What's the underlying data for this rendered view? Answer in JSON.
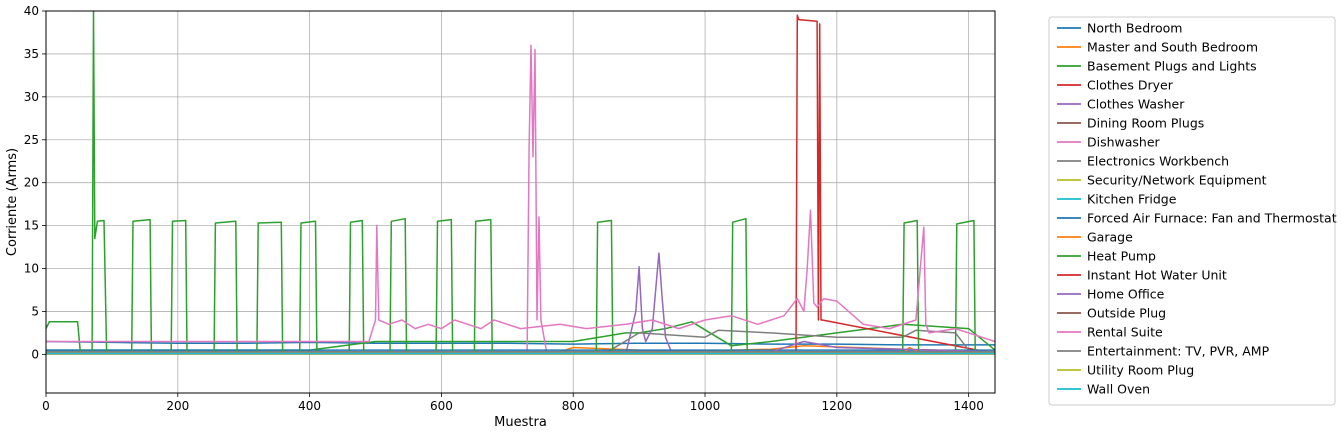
{
  "chart_data": {
    "type": "line",
    "title": "",
    "xlabel": "Muestra",
    "ylabel": "Corriente (Arms)",
    "xlim": [
      0,
      1440
    ],
    "ylim": [
      -4.5,
      40
    ],
    "xticks": [
      0,
      200,
      400,
      600,
      800,
      1000,
      1200,
      1400
    ],
    "yticks": [
      0,
      5,
      10,
      15,
      20,
      25,
      30,
      35,
      40
    ],
    "grid": true,
    "legend_position": "outside-right",
    "series": [
      {
        "name": "North Bedroom",
        "color": "#1f77b4",
        "x": [
          0,
          100,
          200,
          300,
          400,
          500,
          600,
          700,
          800,
          900,
          1000,
          1100,
          1200,
          1300,
          1440
        ],
        "y": [
          1.5,
          1.4,
          1.3,
          1.3,
          1.4,
          1.3,
          1.3,
          1.3,
          1.2,
          1.3,
          1.3,
          1.2,
          1.2,
          1.1,
          1.1
        ]
      },
      {
        "name": "Master and South Bedroom",
        "color": "#ff7f0e",
        "x": [
          0,
          780,
          800,
          900,
          1000,
          1100,
          1150,
          1300,
          1440
        ],
        "y": [
          0.3,
          0.3,
          0.8,
          0.5,
          0.4,
          0.6,
          1.0,
          0.6,
          0.3
        ]
      },
      {
        "name": "Basement Plugs and Lights",
        "color": "#2ca02c",
        "x": [
          0,
          200,
          400,
          500,
          600,
          700,
          800,
          880,
          900,
          940,
          980,
          1040,
          1100,
          1200,
          1300,
          1400,
          1440
        ],
        "y": [
          0.5,
          0.5,
          0.5,
          1.5,
          1.5,
          1.5,
          1.5,
          2.5,
          2.5,
          3.0,
          3.8,
          1.0,
          1.5,
          2.5,
          3.5,
          3.0,
          0.5
        ]
      },
      {
        "name": "Clothes Dryer",
        "color": "#d62728",
        "x": [
          0,
          1138,
          1140,
          1142,
          1170,
          1172,
          1174,
          1176,
          1178,
          1440
        ],
        "y": [
          0.1,
          0.1,
          39.5,
          39.0,
          38.8,
          4.0,
          38.5,
          4.0,
          4.0,
          0.1
        ]
      },
      {
        "name": "Clothes Washer",
        "color": "#9467bd",
        "x": [
          0,
          880,
          895,
          900,
          905,
          910,
          920,
          930,
          935,
          940,
          950,
          1440
        ],
        "y": [
          0.1,
          0.1,
          5.0,
          10.2,
          3.0,
          1.5,
          3.0,
          11.8,
          6.5,
          2.0,
          0.1,
          0.1
        ]
      },
      {
        "name": "Dining Room Plugs",
        "color": "#8c564b",
        "x": [
          0,
          1440
        ],
        "y": [
          0.2,
          0.2
        ]
      },
      {
        "name": "Dishwasher",
        "color": "#e377c2",
        "x": [
          0,
          730,
          733,
          736,
          739,
          742,
          745,
          748,
          751,
          760,
          1440
        ],
        "y": [
          0.1,
          0.1,
          24.0,
          36.0,
          23.0,
          35.5,
          4.0,
          16.0,
          4.0,
          0.1,
          0.1
        ]
      },
      {
        "name": "Electronics Workbench",
        "color": "#7f7f7f",
        "x": [
          0,
          850,
          900,
          1000,
          1020,
          1100,
          1200,
          1300,
          1320,
          1380,
          1400,
          1440
        ],
        "y": [
          0.2,
          0.2,
          2.5,
          2.0,
          2.8,
          2.5,
          2.0,
          2.0,
          2.8,
          2.5,
          0.5,
          0.2
        ]
      },
      {
        "name": "Security/Network Equipment",
        "color": "#bcbd22",
        "x": [
          0,
          1440
        ],
        "y": [
          0.1,
          0.1
        ]
      },
      {
        "name": "Kitchen Fridge",
        "color": "#17becf",
        "x": [
          0,
          1440
        ],
        "y": [
          0.3,
          0.3
        ]
      },
      {
        "name": "Forced Air Furnace: Fan and Thermostat",
        "color": "#1f77b4",
        "x": [
          0,
          1440
        ],
        "y": [
          0.5,
          0.5
        ]
      },
      {
        "name": "Garage",
        "color": "#ff7f0e",
        "x": [
          0,
          1300,
          1310,
          1330,
          1440
        ],
        "y": [
          0.1,
          0.1,
          0.8,
          0.1,
          0.1
        ]
      },
      {
        "name": "Heat Pump",
        "color": "#2ca02c",
        "x": [
          0,
          5,
          8,
          12,
          48,
          52,
          70,
          72,
          74,
          78,
          88,
          92,
          95,
          97,
          130,
          132,
          158,
          160,
          190,
          192,
          212,
          214,
          255,
          257,
          288,
          290,
          320,
          322,
          357,
          359,
          385,
          387,
          409,
          411,
          452,
          454,
          460,
          462,
          480,
          482,
          522,
          524,
          545,
          547,
          592,
          594,
          615,
          617,
          650,
          652,
          675,
          677,
          835,
          837,
          858,
          860,
          1040,
          1042,
          1062,
          1064,
          1300,
          1302,
          1322,
          1324,
          1380,
          1382,
          1408,
          1410,
          1440
        ],
        "y": [
          3.0,
          3.8,
          3.8,
          3.8,
          3.8,
          0.3,
          0.3,
          40,
          13.5,
          15.5,
          15.6,
          0.3,
          0.3,
          0.3,
          0.3,
          15.5,
          15.7,
          0.3,
          0.3,
          15.5,
          15.6,
          0.3,
          0.3,
          15.3,
          15.5,
          0.3,
          0.3,
          15.3,
          15.4,
          0.3,
          0.3,
          15.3,
          15.5,
          0.3,
          0.3,
          0.3,
          0.3,
          15.4,
          15.6,
          0.3,
          0.3,
          15.5,
          15.8,
          0.3,
          0.3,
          15.5,
          15.7,
          0.3,
          0.3,
          15.5,
          15.7,
          0.3,
          0.3,
          15.4,
          15.6,
          0.3,
          0.3,
          15.4,
          15.8,
          0.3,
          0.3,
          15.3,
          15.6,
          0.3,
          0.3,
          15.2,
          15.6,
          0.3,
          0.3
        ]
      },
      {
        "name": "Instant Hot Water Unit",
        "color": "#d62728",
        "x": [
          0,
          1440
        ],
        "y": [
          0.05,
          0.05
        ]
      },
      {
        "name": "Home Office",
        "color": "#9467bd",
        "x": [
          0,
          1100,
          1150,
          1200,
          1440
        ],
        "y": [
          0.3,
          0.3,
          1.5,
          0.8,
          0.3
        ]
      },
      {
        "name": "Outside Plug",
        "color": "#8c564b",
        "x": [
          0,
          1440
        ],
        "y": [
          0.05,
          0.05
        ]
      },
      {
        "name": "Rental Suite",
        "color": "#e377c2",
        "x": [
          0,
          490,
          500,
          502,
          505,
          520,
          540,
          560,
          580,
          600,
          620,
          640,
          660,
          680,
          700,
          720,
          780,
          820,
          880,
          920,
          960,
          1000,
          1040,
          1080,
          1120,
          1140,
          1150,
          1155,
          1160,
          1165,
          1170,
          1180,
          1200,
          1240,
          1280,
          1320,
          1332,
          1335,
          1340,
          1380,
          1440
        ],
        "y": [
          1.5,
          1.5,
          4.0,
          15.0,
          4.0,
          3.5,
          4.0,
          3.0,
          3.5,
          3.0,
          4.0,
          3.5,
          3.0,
          4.0,
          3.5,
          3.0,
          3.5,
          3.0,
          3.5,
          4.0,
          3.0,
          4.0,
          4.5,
          3.5,
          4.5,
          6.5,
          5.0,
          10.0,
          16.8,
          6.0,
          5.5,
          6.5,
          6.2,
          3.5,
          3.0,
          4.0,
          14.8,
          3.5,
          2.5,
          3.0,
          1.5
        ]
      },
      {
        "name": "Entertainment: TV, PVR, AMP",
        "color": "#7f7f7f",
        "x": [
          0,
          1440
        ],
        "y": [
          0.3,
          0.3
        ]
      },
      {
        "name": "Utility Room Plug",
        "color": "#bcbd22",
        "x": [
          0,
          1440
        ],
        "y": [
          0.05,
          0.05
        ]
      },
      {
        "name": "Wall Oven",
        "color": "#17becf",
        "x": [
          0,
          1440
        ],
        "y": [
          0.1,
          0.1
        ]
      }
    ]
  }
}
